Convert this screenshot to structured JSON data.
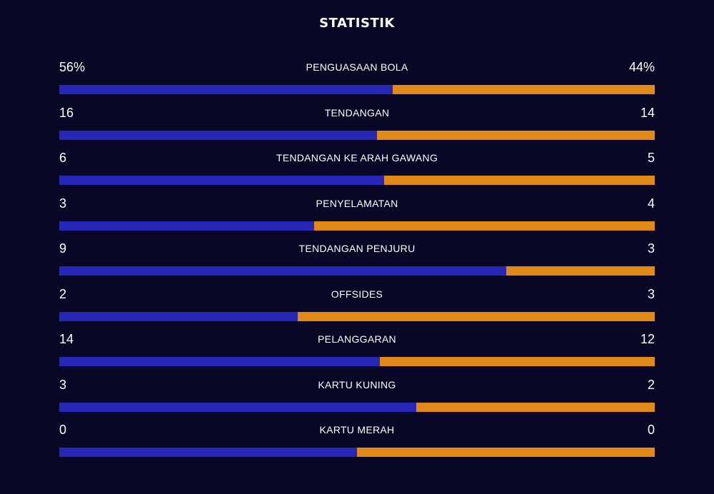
{
  "title": "STATISTIK",
  "colors": {
    "background": "#080826",
    "home": "#2626b8",
    "away": "#e08918",
    "text": "#ffffff"
  },
  "stats": [
    {
      "label": "PENGUASAAN BOLA",
      "home": "56%",
      "away": "44%",
      "home_value": 56,
      "away_value": 44
    },
    {
      "label": "TENDANGAN",
      "home": "16",
      "away": "14",
      "home_value": 16,
      "away_value": 14
    },
    {
      "label": "TENDANGAN KE ARAH GAWANG",
      "home": "6",
      "away": "5",
      "home_value": 6,
      "away_value": 5
    },
    {
      "label": "PENYELAMATAN",
      "home": "3",
      "away": "4",
      "home_value": 3,
      "away_value": 4
    },
    {
      "label": "TENDANGAN PENJURU",
      "home": "9",
      "away": "3",
      "home_value": 9,
      "away_value": 3
    },
    {
      "label": "OFFSIDES",
      "home": "2",
      "away": "3",
      "home_value": 2,
      "away_value": 3
    },
    {
      "label": "PELANGGARAN",
      "home": "14",
      "away": "12",
      "home_value": 14,
      "away_value": 12
    },
    {
      "label": "KARTU KUNING",
      "home": "3",
      "away": "2",
      "home_value": 3,
      "away_value": 2
    },
    {
      "label": "KARTU MERAH",
      "home": "0",
      "away": "0",
      "home_value": 0,
      "away_value": 0
    }
  ]
}
